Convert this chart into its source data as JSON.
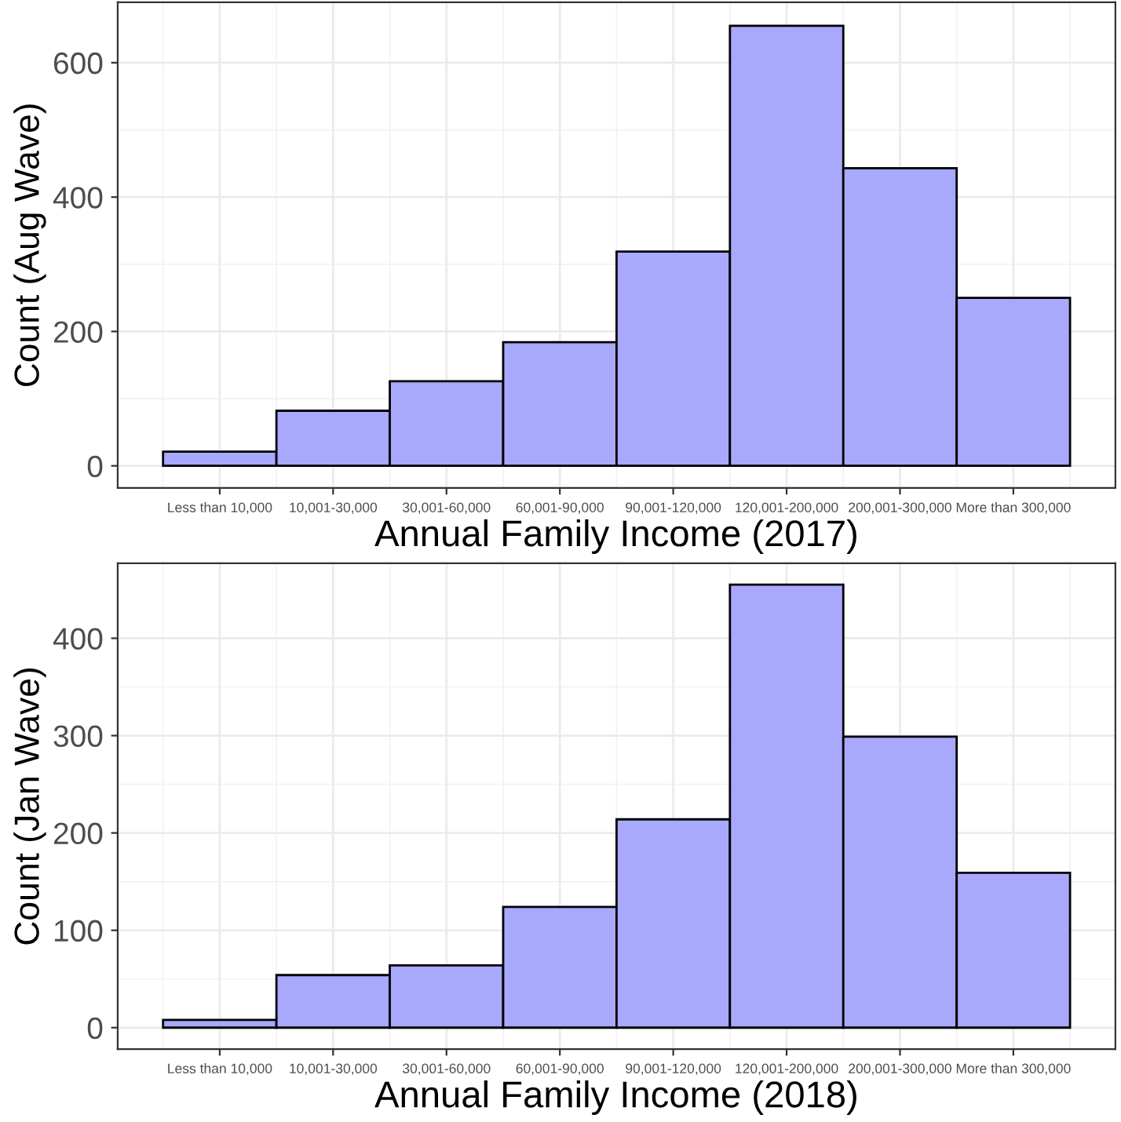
{
  "chart_data": [
    {
      "type": "bar",
      "xlabel": "Annual Family Income (2017)",
      "ylabel": "Count (Aug Wave)",
      "categories": [
        "Less than 10,000",
        "10,001-30,000",
        "30,001-60,000",
        "60,001-90,000",
        "90,001-120,000",
        "120,001-200,000",
        "200,001-300,000",
        "More than 300,000"
      ],
      "values": [
        21,
        82,
        126,
        184,
        319,
        655,
        443,
        250
      ],
      "color": "#a8a8fc",
      "ylim": [
        -33,
        690
      ],
      "yticks": [
        0,
        200,
        400,
        600
      ],
      "grid": true
    },
    {
      "type": "bar",
      "xlabel": "Annual Family Income (2018)",
      "ylabel": "Count (Jan Wave)",
      "categories": [
        "Less than 10,000",
        "10,001-30,000",
        "30,001-60,000",
        "60,001-90,000",
        "90,001-120,000",
        "120,001-200,000",
        "200,001-300,000",
        "More than 300,000"
      ],
      "values": [
        8,
        54,
        64,
        124,
        214,
        455,
        299,
        159
      ],
      "color": "#a8a8fc",
      "ylim": [
        -22,
        477
      ],
      "yticks": [
        0,
        100,
        200,
        300,
        400
      ],
      "grid": true
    }
  ]
}
